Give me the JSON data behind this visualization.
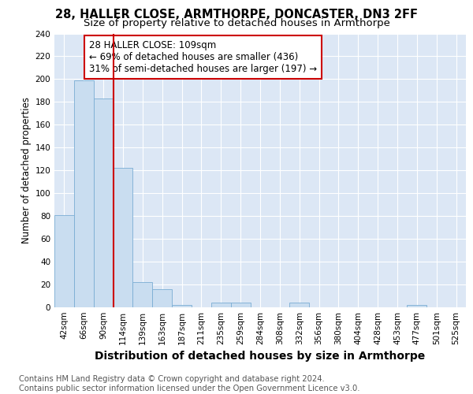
{
  "title1": "28, HALLER CLOSE, ARMTHORPE, DONCASTER, DN3 2FF",
  "title2": "Size of property relative to detached houses in Armthorpe",
  "xlabel": "Distribution of detached houses by size in Armthorpe",
  "ylabel": "Number of detached properties",
  "footnote": "Contains HM Land Registry data © Crown copyright and database right 2024.\nContains public sector information licensed under the Open Government Licence v3.0.",
  "bar_labels": [
    "42sqm",
    "66sqm",
    "90sqm",
    "114sqm",
    "139sqm",
    "163sqm",
    "187sqm",
    "211sqm",
    "235sqm",
    "259sqm",
    "284sqm",
    "308sqm",
    "332sqm",
    "356sqm",
    "380sqm",
    "404sqm",
    "428sqm",
    "453sqm",
    "477sqm",
    "501sqm",
    "525sqm"
  ],
  "bar_values": [
    81,
    199,
    183,
    122,
    22,
    16,
    2,
    0,
    4,
    4,
    0,
    0,
    4,
    0,
    0,
    0,
    0,
    0,
    2,
    0,
    0
  ],
  "bar_color": "#c9ddf0",
  "bar_edge_color": "#7aadd4",
  "vline_x": 3,
  "vline_color": "#cc0000",
  "annotation_text": "28 HALLER CLOSE: 109sqm\n← 69% of detached houses are smaller (436)\n31% of semi-detached houses are larger (197) →",
  "annotation_box_color": "#ffffff",
  "annotation_box_edge": "#cc0000",
  "ylim": [
    0,
    240
  ],
  "yticks": [
    0,
    20,
    40,
    60,
    80,
    100,
    120,
    140,
    160,
    180,
    200,
    220,
    240
  ],
  "fig_bg_color": "#ffffff",
  "plot_bg_color": "#dce7f5",
  "grid_color": "#ffffff",
  "title1_fontsize": 10.5,
  "title2_fontsize": 9.5,
  "xlabel_fontsize": 10,
  "ylabel_fontsize": 8.5,
  "tick_fontsize": 7.5,
  "footnote_fontsize": 7.2,
  "annotation_fontsize": 8.5
}
